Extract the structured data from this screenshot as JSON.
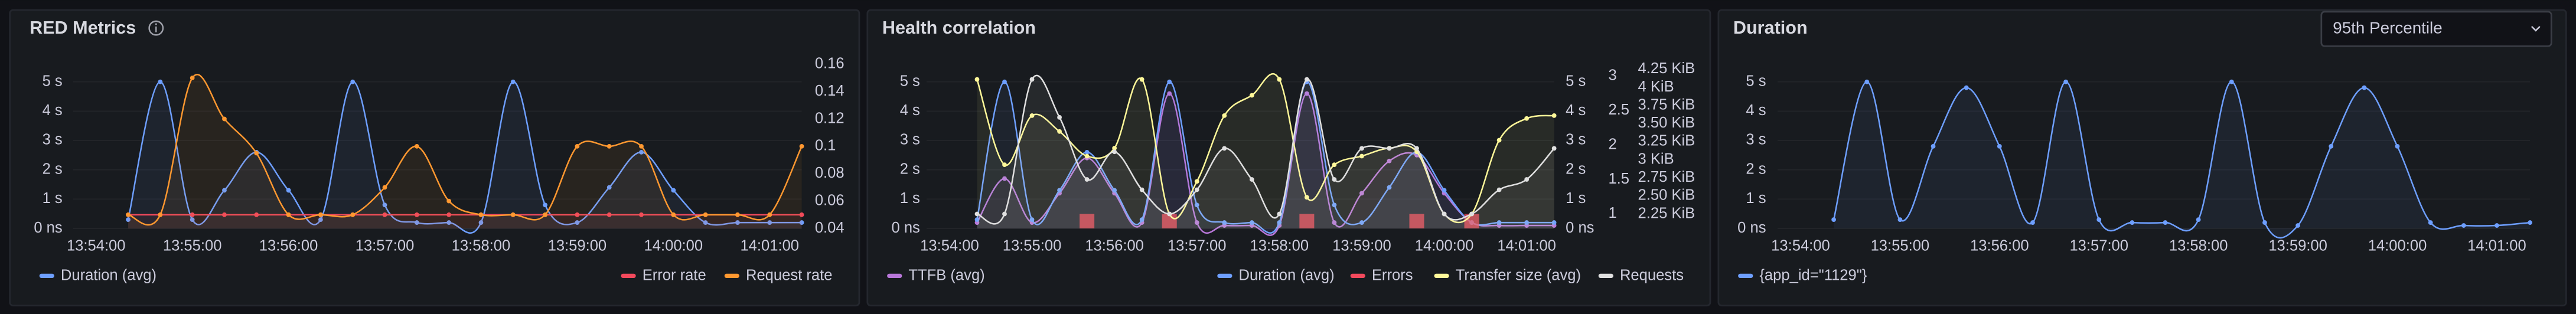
{
  "chart_data": [
    {
      "type": "line",
      "title": "RED Metrics",
      "x": [
        "13:54:20",
        "13:54:40",
        "13:55:00",
        "13:55:20",
        "13:55:40",
        "13:56:00",
        "13:56:20",
        "13:56:40",
        "13:57:00",
        "13:57:20",
        "13:57:40",
        "13:58:00",
        "13:58:20",
        "13:58:40",
        "13:59:00",
        "13:59:20",
        "13:59:40",
        "14:00:00",
        "14:00:20",
        "14:00:40",
        "14:01:00",
        "14:01:20"
      ],
      "xlim": [
        "13:54:00",
        "14:01:20"
      ],
      "xticks": [
        "13:54:00",
        "13:55:00",
        "13:56:00",
        "13:57:00",
        "13:58:00",
        "13:59:00",
        "14:00:00",
        "14:01:00"
      ],
      "ylim": [
        0,
        5.6
      ],
      "yticks": [
        {
          "value": 0,
          "label": "0 ns"
        },
        {
          "value": 1,
          "label": "1 s"
        },
        {
          "value": 2,
          "label": "2 s"
        },
        {
          "value": 3,
          "label": "3 s"
        },
        {
          "value": 4,
          "label": "4 s"
        },
        {
          "value": 5,
          "label": "5 s"
        }
      ],
      "y2lim": [
        0.04,
        0.16
      ],
      "y2ticks": [
        0.04,
        0.06,
        0.08,
        0.1,
        0.12,
        0.14,
        0.16
      ],
      "grid": true,
      "series": [
        {
          "name": "Duration (avg)",
          "color": "#6e9fff",
          "axis": "y",
          "values": [
            0.3,
            5,
            0.3,
            1.3,
            2.6,
            1.3,
            0.3,
            5,
            0.8,
            0.2,
            0.2,
            0.2,
            5,
            0.8,
            0.2,
            1.4,
            2.6,
            1.3,
            0.2,
            0.2,
            0.2,
            0.2
          ]
        },
        {
          "name": "Error rate",
          "color": "#f2495c",
          "axis": "y2",
          "values": [
            0.05,
            0.05,
            0.05,
            0.05,
            0.05,
            0.05,
            0.05,
            0.05,
            0.05,
            0.05,
            0.05,
            0.05,
            0.05,
            0.05,
            0.05,
            0.05,
            0.05,
            0.05,
            0.05,
            0.05,
            0.05,
            0.05
          ]
        },
        {
          "name": "Request rate",
          "color": "#ff9830",
          "axis": "y2",
          "values": [
            0.05,
            0.05,
            0.15,
            0.12,
            0.095,
            0.05,
            0.05,
            0.05,
            0.07,
            0.1,
            0.06,
            0.05,
            0.05,
            0.05,
            0.1,
            0.1,
            0.1,
            0.05,
            0.05,
            0.05,
            0.05,
            0.1
          ]
        }
      ]
    },
    {
      "type": "line",
      "title": "Health correlation",
      "x": [
        "13:54:20",
        "13:54:40",
        "13:55:00",
        "13:55:20",
        "13:55:40",
        "13:56:00",
        "13:56:20",
        "13:56:40",
        "13:57:00",
        "13:57:20",
        "13:57:40",
        "13:58:00",
        "13:58:20",
        "13:58:40",
        "13:59:00",
        "13:59:20",
        "13:59:40",
        "14:00:00",
        "14:00:20",
        "14:00:40",
        "14:01:00",
        "14:01:20"
      ],
      "xlim": [
        "13:54:00",
        "14:01:20"
      ],
      "xticks": [
        "13:54:00",
        "13:55:00",
        "13:56:00",
        "13:57:00",
        "13:58:00",
        "13:59:00",
        "14:00:00",
        "14:01:00"
      ],
      "ylim": [
        0,
        5.6
      ],
      "yticks": [
        {
          "value": 0,
          "label": "0 ns"
        },
        {
          "value": 1,
          "label": "1 s"
        },
        {
          "value": 2,
          "label": "2 s"
        },
        {
          "value": 3,
          "label": "3 s"
        },
        {
          "value": 4,
          "label": "4 s"
        },
        {
          "value": 5,
          "label": "5 s"
        }
      ],
      "y2lim": [
        0,
        5.6
      ],
      "y2ticks": [
        {
          "value": 0,
          "label": "0 ns"
        },
        {
          "value": 1,
          "label": "1 s"
        },
        {
          "value": 2,
          "label": "2 s"
        },
        {
          "value": 3,
          "label": "3 s"
        },
        {
          "value": 4,
          "label": "4 s"
        },
        {
          "value": 5,
          "label": "5 s"
        }
      ],
      "y3lim": [
        0.79,
        3.17
      ],
      "y3ticks": [
        1,
        1.5,
        2,
        2.5,
        3
      ],
      "y4lim": [
        2.05,
        4.32
      ],
      "y4ticks": [
        {
          "value": 2.25,
          "label": "2.25 KiB"
        },
        {
          "value": 2.5,
          "label": "2.50 KiB"
        },
        {
          "value": 2.75,
          "label": "2.75 KiB"
        },
        {
          "value": 3,
          "label": "3 KiB"
        },
        {
          "value": 3.25,
          "label": "3.25 KiB"
        },
        {
          "value": 3.5,
          "label": "3.50 KiB"
        },
        {
          "value": 3.75,
          "label": "3.75 KiB"
        },
        {
          "value": 4,
          "label": "4 KiB"
        },
        {
          "value": 4.25,
          "label": "4.25 KiB"
        }
      ],
      "grid": true,
      "series": [
        {
          "name": "TTFB (avg)",
          "color": "#b877d9",
          "axis": "y",
          "values": [
            0.2,
            1.7,
            0.2,
            1.2,
            2.4,
            1.2,
            0.2,
            4.6,
            0.2,
            0.1,
            0.1,
            0.1,
            4.6,
            0.2,
            1.2,
            2.3,
            2.5,
            1.2,
            0.2,
            0.1,
            0.1,
            0.1
          ]
        },
        {
          "name": "Duration (avg)",
          "color": "#6e9fff",
          "axis": "y2",
          "values": [
            0.3,
            5,
            0.3,
            1.3,
            2.6,
            1.3,
            0.3,
            5,
            0.8,
            0.2,
            0.2,
            0.2,
            5,
            0.8,
            0.2,
            1.4,
            2.6,
            1.3,
            0.2,
            0.2,
            0.2,
            0.2
          ]
        },
        {
          "name": "Errors",
          "color": "#f2495c",
          "axis": "y3",
          "type": "bar",
          "values": [
            0,
            0,
            0,
            0,
            1,
            0,
            0,
            1,
            0,
            0,
            0,
            0,
            1,
            0,
            0,
            0,
            1,
            0,
            1,
            0,
            0,
            0
          ]
        },
        {
          "name": "Transfer size (avg)",
          "color": "#fff899",
          "axis": "y4",
          "values": [
            4.11,
            2.93,
            3.61,
            3.39,
            3.05,
            3.16,
            4.11,
            2.25,
            2.7,
            3.61,
            3.89,
            4.11,
            2.48,
            2.93,
            3.05,
            3.16,
            3.11,
            2.25,
            2.25,
            3.27,
            3.57,
            3.61
          ]
        },
        {
          "name": "Requests",
          "color": "#e0e0e0",
          "axis": "y3",
          "values": [
            1,
            1,
            2.95,
            2.4,
            1.5,
            1.9,
            1.35,
            1,
            1.35,
            1.95,
            1.5,
            1,
            2.95,
            1.5,
            1.95,
            1.95,
            1.95,
            1,
            1,
            1.35,
            1.5,
            1.95
          ]
        }
      ]
    },
    {
      "type": "line",
      "title": "Duration",
      "dropdown": "95th Percentile",
      "x": [
        "13:54:20",
        "13:54:40",
        "13:55:00",
        "13:55:20",
        "13:55:40",
        "13:56:00",
        "13:56:20",
        "13:56:40",
        "13:57:00",
        "13:57:20",
        "13:57:40",
        "13:58:00",
        "13:58:20",
        "13:58:40",
        "13:59:00",
        "13:59:20",
        "13:59:40",
        "14:00:00",
        "14:00:20",
        "14:00:40",
        "14:01:00",
        "14:01:20"
      ],
      "xlim": [
        "13:54:00",
        "14:01:20"
      ],
      "xticks": [
        "13:54:00",
        "13:55:00",
        "13:56:00",
        "13:57:00",
        "13:58:00",
        "13:59:00",
        "14:00:00",
        "14:01:00"
      ],
      "ylim": [
        0,
        5.6
      ],
      "yticks": [
        {
          "value": 0,
          "label": "0 ns"
        },
        {
          "value": 1,
          "label": "1 s"
        },
        {
          "value": 2,
          "label": "2 s"
        },
        {
          "value": 3,
          "label": "3 s"
        },
        {
          "value": 4,
          "label": "4 s"
        },
        {
          "value": 5,
          "label": "5 s"
        }
      ],
      "grid": true,
      "series": [
        {
          "name": "{app_id=\"1129\"}",
          "color": "#6e9fff",
          "axis": "y",
          "values": [
            0.3,
            5,
            0.3,
            2.8,
            4.8,
            2.8,
            0.2,
            5,
            0.3,
            0.2,
            0.2,
            0.3,
            5,
            0.2,
            0.1,
            2.8,
            4.8,
            2.8,
            0.2,
            0.1,
            0.1,
            0.2
          ]
        }
      ]
    }
  ]
}
